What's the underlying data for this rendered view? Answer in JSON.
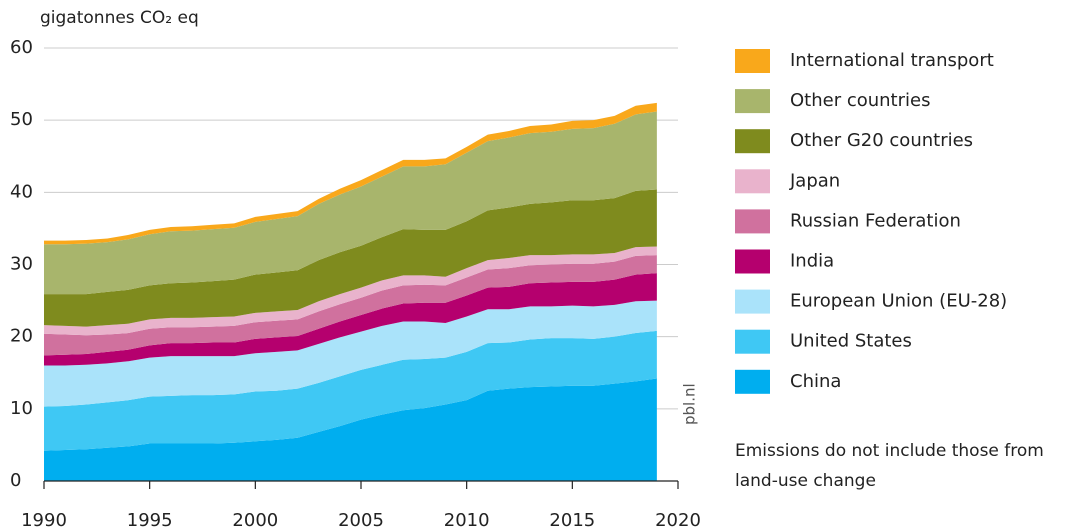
{
  "chart_data": {
    "type": "stacked_area",
    "ylabel": "gigatonnes CO₂ eq",
    "source": "pbl.nl",
    "note": [
      "Emissions do not include those from",
      "land-use change"
    ],
    "x": [
      1990,
      1991,
      1992,
      1993,
      1994,
      1995,
      1996,
      1997,
      1998,
      1999,
      2000,
      2001,
      2002,
      2003,
      2004,
      2005,
      2006,
      2007,
      2008,
      2009,
      2010,
      2011,
      2012,
      2013,
      2014,
      2015,
      2016,
      2017,
      2018,
      2019
    ],
    "xlim": [
      1990,
      2020
    ],
    "xticks": [
      1990,
      1995,
      2000,
      2005,
      2010,
      2015,
      2020
    ],
    "ylim": [
      0,
      60
    ],
    "yticks": [
      0,
      10,
      20,
      30,
      40,
      50,
      60
    ],
    "grid": true,
    "legend": "right",
    "series": [
      {
        "name": "China",
        "color": "#00aeef",
        "values": [
          4.2,
          4.3,
          4.4,
          4.6,
          4.8,
          5.2,
          5.2,
          5.2,
          5.2,
          5.3,
          5.5,
          5.7,
          6.0,
          6.8,
          7.6,
          8.5,
          9.2,
          9.8,
          10.1,
          10.6,
          11.2,
          12.5,
          12.8,
          13.0,
          13.1,
          13.2,
          13.2,
          13.5,
          13.8,
          14.2
        ]
      },
      {
        "name": "United States",
        "color": "#3fc8f4",
        "values": [
          6.1,
          6.1,
          6.2,
          6.3,
          6.4,
          6.5,
          6.6,
          6.7,
          6.7,
          6.7,
          6.9,
          6.8,
          6.8,
          6.8,
          6.9,
          6.9,
          6.9,
          7.0,
          6.8,
          6.5,
          6.7,
          6.6,
          6.4,
          6.6,
          6.7,
          6.6,
          6.5,
          6.5,
          6.7,
          6.6
        ]
      },
      {
        "name": "European Union (EU-28)",
        "color": "#aae3fa",
        "values": [
          5.7,
          5.6,
          5.5,
          5.4,
          5.4,
          5.4,
          5.5,
          5.4,
          5.4,
          5.3,
          5.3,
          5.4,
          5.3,
          5.4,
          5.4,
          5.3,
          5.4,
          5.3,
          5.2,
          4.8,
          4.9,
          4.7,
          4.6,
          4.6,
          4.4,
          4.5,
          4.5,
          4.4,
          4.4,
          4.2
        ]
      },
      {
        "name": "India",
        "color": "#b5006e",
        "values": [
          1.4,
          1.5,
          1.5,
          1.6,
          1.6,
          1.7,
          1.8,
          1.8,
          1.9,
          1.9,
          2.0,
          2.0,
          2.0,
          2.1,
          2.2,
          2.3,
          2.4,
          2.5,
          2.6,
          2.8,
          2.9,
          3.0,
          3.1,
          3.2,
          3.3,
          3.3,
          3.4,
          3.5,
          3.7,
          3.8
        ]
      },
      {
        "name": "Russian Federation",
        "color": "#d0719e",
        "values": [
          3.0,
          2.8,
          2.6,
          2.4,
          2.3,
          2.3,
          2.2,
          2.2,
          2.2,
          2.3,
          2.3,
          2.3,
          2.3,
          2.4,
          2.4,
          2.4,
          2.5,
          2.5,
          2.5,
          2.4,
          2.5,
          2.5,
          2.6,
          2.5,
          2.5,
          2.5,
          2.5,
          2.5,
          2.6,
          2.5
        ]
      },
      {
        "name": "Japan",
        "color": "#e9b3cc",
        "values": [
          1.2,
          1.2,
          1.2,
          1.3,
          1.3,
          1.3,
          1.3,
          1.3,
          1.3,
          1.3,
          1.3,
          1.3,
          1.3,
          1.4,
          1.4,
          1.4,
          1.4,
          1.4,
          1.3,
          1.2,
          1.3,
          1.3,
          1.4,
          1.4,
          1.3,
          1.3,
          1.3,
          1.2,
          1.2,
          1.2
        ]
      },
      {
        "name": "Other G20 countries",
        "color": "#7f8b1e",
        "values": [
          4.3,
          4.4,
          4.5,
          4.6,
          4.7,
          4.7,
          4.8,
          4.9,
          5.0,
          5.1,
          5.3,
          5.4,
          5.5,
          5.7,
          5.8,
          5.8,
          6.0,
          6.4,
          6.3,
          6.5,
          6.5,
          6.9,
          7.0,
          7.1,
          7.3,
          7.5,
          7.5,
          7.6,
          7.8,
          7.9
        ]
      },
      {
        "name": "Other countries",
        "color": "#a8b56c",
        "values": [
          6.9,
          6.9,
          7.0,
          6.9,
          7.0,
          7.1,
          7.2,
          7.2,
          7.2,
          7.2,
          7.3,
          7.4,
          7.5,
          7.8,
          8.0,
          8.2,
          8.4,
          8.7,
          8.8,
          9.1,
          9.5,
          9.6,
          9.7,
          9.8,
          9.8,
          9.9,
          10.0,
          10.3,
          10.6,
          10.8
        ]
      },
      {
        "name": "International  transport",
        "color": "#f9a81b",
        "values": [
          0.5,
          0.5,
          0.5,
          0.5,
          0.6,
          0.6,
          0.6,
          0.6,
          0.6,
          0.6,
          0.7,
          0.7,
          0.7,
          0.7,
          0.8,
          0.9,
          0.9,
          0.9,
          0.9,
          0.8,
          0.8,
          0.9,
          0.9,
          1.0,
          1.0,
          1.1,
          1.1,
          1.1,
          1.2,
          1.2
        ]
      }
    ]
  }
}
